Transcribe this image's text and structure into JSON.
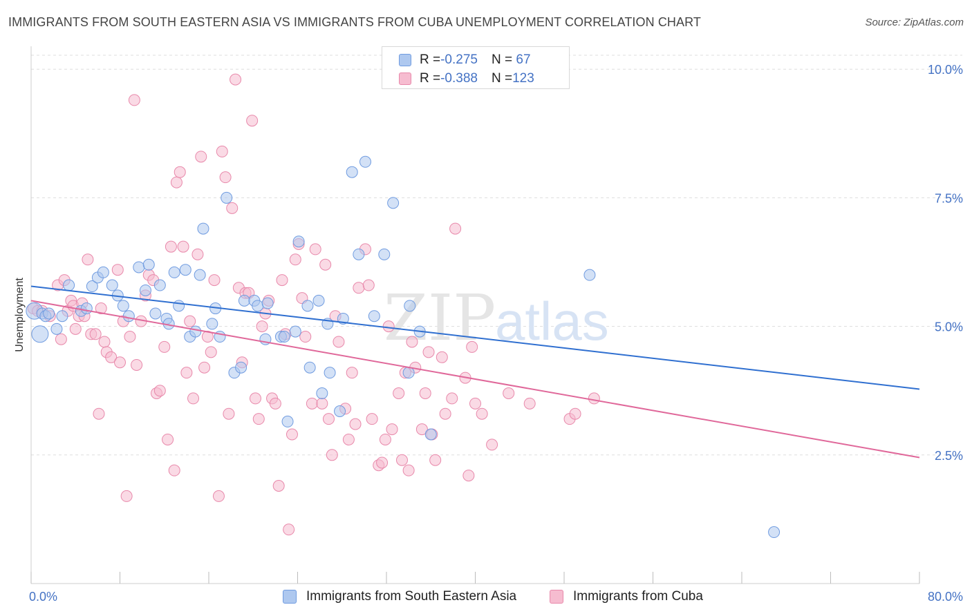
{
  "title": "IMMIGRANTS FROM SOUTH EASTERN ASIA VS IMMIGRANTS FROM CUBA UNEMPLOYMENT CORRELATION CHART",
  "source": "Source: ZipAtlas.com",
  "watermark": {
    "zip": "ZIP",
    "atlas": "atlas"
  },
  "legend": {
    "rows": [
      {
        "r_label": "R = ",
        "r_value": "-0.275",
        "n_label": "N = ",
        "n_value": " 67"
      },
      {
        "r_label": "R = ",
        "r_value": "-0.388",
        "n_label": "N = ",
        "n_value": "123"
      }
    ]
  },
  "colors": {
    "blue_fill": "#aec8ef",
    "blue_stroke": "#6f9be0",
    "blue_line": "#2f6fd0",
    "pink_fill": "#f6bcd0",
    "pink_stroke": "#e888aa",
    "pink_line": "#e0689a",
    "tick_text": "#4472c4",
    "grid": "#dddddd"
  },
  "chart_data": {
    "type": "scatter",
    "title": "IMMIGRANTS FROM SOUTH EASTERN ASIA VS IMMIGRANTS FROM CUBA UNEMPLOYMENT CORRELATION CHART",
    "xlabel": "",
    "ylabel": "Unemployment",
    "xlim": [
      0,
      80
    ],
    "ylim": [
      0,
      10.5
    ],
    "x_tick_labels": [
      "0.0%",
      "80.0%"
    ],
    "y_ticks": [
      2.5,
      5.0,
      7.5,
      10.0
    ],
    "y_tick_labels": [
      "2.5%",
      "5.0%",
      "7.5%",
      "10.0%"
    ],
    "grid": "horizontal dashed",
    "legend_position": "top-center",
    "series": [
      {
        "name": "Immigrants from South Eastern Asia",
        "color": "blue",
        "trend": {
          "x0": 0,
          "y0": 5.78,
          "x1": 80,
          "y1": 3.78
        },
        "points": [
          [
            0.3,
            5.3
          ],
          [
            0.8,
            4.85
          ],
          [
            1.0,
            5.25
          ],
          [
            1.3,
            5.2
          ],
          [
            1.6,
            5.25
          ],
          [
            2.3,
            4.95
          ],
          [
            2.8,
            5.2
          ],
          [
            3.4,
            5.8
          ],
          [
            4.5,
            5.3
          ],
          [
            5.0,
            5.35
          ],
          [
            5.5,
            5.78
          ],
          [
            6.0,
            5.95
          ],
          [
            6.5,
            6.05
          ],
          [
            7.3,
            5.8
          ],
          [
            7.8,
            5.6
          ],
          [
            8.3,
            5.4
          ],
          [
            8.8,
            5.2
          ],
          [
            9.7,
            6.15
          ],
          [
            10.3,
            5.7
          ],
          [
            10.6,
            6.2
          ],
          [
            11.2,
            5.25
          ],
          [
            11.6,
            5.8
          ],
          [
            12.2,
            5.15
          ],
          [
            12.4,
            5.05
          ],
          [
            12.9,
            6.05
          ],
          [
            13.3,
            5.4
          ],
          [
            13.9,
            6.1
          ],
          [
            14.3,
            4.8
          ],
          [
            14.8,
            4.9
          ],
          [
            15.2,
            6.0
          ],
          [
            15.5,
            6.9
          ],
          [
            16.3,
            5.05
          ],
          [
            16.6,
            5.35
          ],
          [
            17.0,
            4.8
          ],
          [
            17.6,
            7.5
          ],
          [
            18.3,
            4.1
          ],
          [
            18.9,
            4.2
          ],
          [
            19.2,
            5.5
          ],
          [
            20.1,
            5.5
          ],
          [
            20.4,
            5.4
          ],
          [
            21.1,
            4.75
          ],
          [
            21.3,
            5.45
          ],
          [
            22.5,
            4.8
          ],
          [
            22.8,
            4.8
          ],
          [
            23.1,
            3.15
          ],
          [
            23.8,
            4.9
          ],
          [
            24.1,
            6.65
          ],
          [
            24.9,
            5.4
          ],
          [
            25.1,
            4.2
          ],
          [
            25.9,
            5.5
          ],
          [
            26.2,
            3.7
          ],
          [
            26.7,
            5.05
          ],
          [
            26.9,
            4.1
          ],
          [
            27.8,
            3.35
          ],
          [
            28.1,
            5.15
          ],
          [
            28.9,
            8.0
          ],
          [
            29.5,
            6.4
          ],
          [
            30.1,
            8.2
          ],
          [
            30.9,
            5.2
          ],
          [
            31.8,
            6.4
          ],
          [
            32.6,
            7.4
          ],
          [
            34.0,
            4.1
          ],
          [
            34.1,
            5.4
          ],
          [
            35.0,
            4.9
          ],
          [
            36.0,
            2.9
          ],
          [
            50.3,
            6.0
          ],
          [
            66.9,
            1.0
          ]
        ]
      },
      {
        "name": "Immigrants from Cuba",
        "color": "pink",
        "trend": {
          "x0": 0,
          "y0": 5.5,
          "x1": 80,
          "y1": 2.45
        },
        "points": [
          [
            0.2,
            5.35
          ],
          [
            0.6,
            5.3
          ],
          [
            1.0,
            5.3
          ],
          [
            1.7,
            5.2
          ],
          [
            2.4,
            5.8
          ],
          [
            2.7,
            4.75
          ],
          [
            3.0,
            5.9
          ],
          [
            3.3,
            5.3
          ],
          [
            3.6,
            5.5
          ],
          [
            3.8,
            5.4
          ],
          [
            4.0,
            4.95
          ],
          [
            4.3,
            5.2
          ],
          [
            4.6,
            5.45
          ],
          [
            4.8,
            5.2
          ],
          [
            5.1,
            6.3
          ],
          [
            5.4,
            4.85
          ],
          [
            5.8,
            4.85
          ],
          [
            6.1,
            3.3
          ],
          [
            6.3,
            5.35
          ],
          [
            6.6,
            4.7
          ],
          [
            6.8,
            4.5
          ],
          [
            7.2,
            4.4
          ],
          [
            7.8,
            6.1
          ],
          [
            8.0,
            4.3
          ],
          [
            8.3,
            5.1
          ],
          [
            8.6,
            1.7
          ],
          [
            8.9,
            4.8
          ],
          [
            9.3,
            9.4
          ],
          [
            9.5,
            4.25
          ],
          [
            9.9,
            5.1
          ],
          [
            10.3,
            5.6
          ],
          [
            10.6,
            6.0
          ],
          [
            11.0,
            5.9
          ],
          [
            11.3,
            3.7
          ],
          [
            11.6,
            3.75
          ],
          [
            12.0,
            4.6
          ],
          [
            12.3,
            2.8
          ],
          [
            12.6,
            6.55
          ],
          [
            12.9,
            2.2
          ],
          [
            13.1,
            7.8
          ],
          [
            13.4,
            8.0
          ],
          [
            13.7,
            6.55
          ],
          [
            14.0,
            4.1
          ],
          [
            14.3,
            5.1
          ],
          [
            14.6,
            3.6
          ],
          [
            15.0,
            6.4
          ],
          [
            15.3,
            8.3
          ],
          [
            15.6,
            4.2
          ],
          [
            15.9,
            4.8
          ],
          [
            16.2,
            4.5
          ],
          [
            16.5,
            5.9
          ],
          [
            16.9,
            1.7
          ],
          [
            17.2,
            8.4
          ],
          [
            17.5,
            7.9
          ],
          [
            17.8,
            3.3
          ],
          [
            18.1,
            7.3
          ],
          [
            18.4,
            9.8
          ],
          [
            18.7,
            5.75
          ],
          [
            19.0,
            4.3
          ],
          [
            19.3,
            5.65
          ],
          [
            19.6,
            5.65
          ],
          [
            19.9,
            9.0
          ],
          [
            20.2,
            3.6
          ],
          [
            20.5,
            3.2
          ],
          [
            20.8,
            5.0
          ],
          [
            21.1,
            5.25
          ],
          [
            21.4,
            5.5
          ],
          [
            21.7,
            3.6
          ],
          [
            22.0,
            3.5
          ],
          [
            22.3,
            1.9
          ],
          [
            22.6,
            5.9
          ],
          [
            22.9,
            4.85
          ],
          [
            23.2,
            1.05
          ],
          [
            23.5,
            2.9
          ],
          [
            23.8,
            6.3
          ],
          [
            24.1,
            6.6
          ],
          [
            24.4,
            5.55
          ],
          [
            24.7,
            4.8
          ],
          [
            25.3,
            3.5
          ],
          [
            25.6,
            6.5
          ],
          [
            26.2,
            3.5
          ],
          [
            26.5,
            6.2
          ],
          [
            26.8,
            3.2
          ],
          [
            27.1,
            2.5
          ],
          [
            27.4,
            5.2
          ],
          [
            27.7,
            4.7
          ],
          [
            28.3,
            3.4
          ],
          [
            28.6,
            2.8
          ],
          [
            28.9,
            4.1
          ],
          [
            29.2,
            3.1
          ],
          [
            29.5,
            5.75
          ],
          [
            30.1,
            6.5
          ],
          [
            30.4,
            5.8
          ],
          [
            30.7,
            3.2
          ],
          [
            31.3,
            2.3
          ],
          [
            31.6,
            2.35
          ],
          [
            31.9,
            2.8
          ],
          [
            32.2,
            5.0
          ],
          [
            32.5,
            3.0
          ],
          [
            33.1,
            3.7
          ],
          [
            33.4,
            2.4
          ],
          [
            33.7,
            4.1
          ],
          [
            34.0,
            2.2
          ],
          [
            34.3,
            4.7
          ],
          [
            34.6,
            4.2
          ],
          [
            35.2,
            3.0
          ],
          [
            35.5,
            3.7
          ],
          [
            35.8,
            4.5
          ],
          [
            36.1,
            2.9
          ],
          [
            36.4,
            2.4
          ],
          [
            37.0,
            4.4
          ],
          [
            37.3,
            3.3
          ],
          [
            37.9,
            3.6
          ],
          [
            38.2,
            6.9
          ],
          [
            39.1,
            4.0
          ],
          [
            39.4,
            2.1
          ],
          [
            39.7,
            4.6
          ],
          [
            40.0,
            3.5
          ],
          [
            40.6,
            3.3
          ],
          [
            41.5,
            2.7
          ],
          [
            43.0,
            3.7
          ],
          [
            44.9,
            3.5
          ],
          [
            48.5,
            3.2
          ],
          [
            49.0,
            3.3
          ],
          [
            50.7,
            3.6
          ]
        ]
      }
    ]
  },
  "bottom_legend": [
    {
      "label": "Immigrants from South Eastern Asia"
    },
    {
      "label": "Immigrants from Cuba"
    }
  ]
}
